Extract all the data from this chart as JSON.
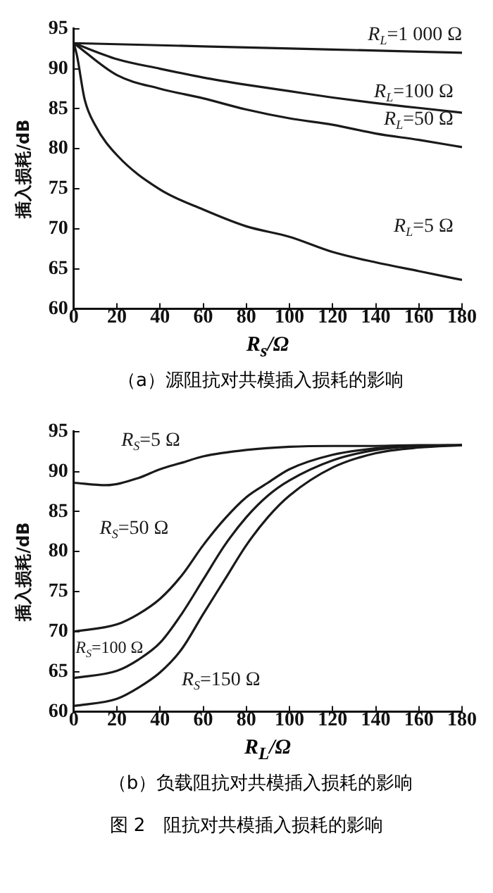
{
  "chart_data": [
    {
      "type": "line",
      "xlabel": "R$_{s}$/Ω",
      "ylabel": "插入损耗/dB",
      "xlim": [
        0,
        180
      ],
      "ylim": [
        60,
        95
      ],
      "xticks": [
        0,
        20,
        40,
        60,
        80,
        100,
        120,
        140,
        160,
        180
      ],
      "yticks": [
        60,
        65,
        70,
        75,
        80,
        85,
        90,
        95
      ],
      "grid": false,
      "legend": false,
      "marker": "none",
      "line_style": "solid",
      "annotations": [
        "（a）源阻抗对共模插入损耗的影响"
      ],
      "series": [
        {
          "name": "R$_{L}$=1 000 Ω",
          "color": "#1a1a1a",
          "x": [
            0,
            60,
            120,
            180
          ],
          "values": [
            93.2,
            92.8,
            92.4,
            92.0
          ]
        },
        {
          "name": "R$_{L}$=100 Ω",
          "color": "#1a1a1a",
          "x": [
            0,
            20,
            40,
            60,
            80,
            100,
            120,
            140,
            160,
            180
          ],
          "values": [
            93.2,
            91.2,
            90.0,
            88.9,
            88.0,
            87.2,
            86.4,
            85.7,
            85.1,
            84.5
          ]
        },
        {
          "name": "R$_{L}$=50 Ω",
          "color": "#1a1a1a",
          "x": [
            0,
            20,
            40,
            60,
            80,
            100,
            120,
            140,
            160,
            180
          ],
          "values": [
            93.2,
            89.2,
            87.5,
            86.3,
            84.9,
            83.8,
            83.0,
            81.9,
            81.1,
            80.2
          ]
        },
        {
          "name": "R$_{L}$=5 Ω",
          "color": "#1a1a1a",
          "x": [
            0,
            1.5,
            5,
            10,
            20,
            40,
            60,
            80,
            100,
            120,
            140,
            160,
            180
          ],
          "values": [
            93.2,
            91.6,
            86.2,
            82.9,
            79.2,
            74.9,
            72.4,
            70.3,
            69.0,
            67.1,
            65.8,
            64.7,
            63.6
          ]
        }
      ]
    },
    {
      "type": "line",
      "xlabel": "R$_{L}$/Ω",
      "ylabel": "插入损耗/dB",
      "xlim": [
        0,
        180
      ],
      "ylim": [
        60,
        95
      ],
      "xticks": [
        0,
        20,
        40,
        60,
        80,
        100,
        120,
        140,
        160,
        180
      ],
      "yticks": [
        60,
        65,
        70,
        75,
        80,
        85,
        90,
        95
      ],
      "grid": false,
      "legend": false,
      "marker": "none",
      "line_style": "solid",
      "annotations": [
        "（b）负载阻抗对共模插入损耗的影响",
        "图 2　阻抗对共模插入损耗的影响"
      ],
      "series": [
        {
          "name": "R$_{S}$=5 Ω",
          "color": "#1a1a1a",
          "x": [
            0,
            15,
            30,
            40,
            50,
            60,
            80,
            100,
            120,
            140,
            160,
            180
          ],
          "values": [
            88.6,
            88.3,
            89.2,
            90.3,
            91.1,
            91.9,
            92.7,
            93.1,
            93.2,
            93.2,
            93.3,
            93.3
          ]
        },
        {
          "name": "R$_{S}$=50 Ω",
          "color": "#1a1a1a",
          "x": [
            0,
            20,
            30,
            40,
            50,
            60,
            70,
            80,
            90,
            100,
            120,
            140,
            160,
            180
          ],
          "values": [
            70.0,
            70.9,
            72.2,
            74.1,
            77.0,
            80.8,
            84.1,
            86.8,
            88.6,
            90.3,
            92.1,
            92.9,
            93.2,
            93.3
          ]
        },
        {
          "name": "R$_{S}$=100 Ω",
          "color": "#1a1a1a",
          "x": [
            0,
            20,
            30,
            40,
            50,
            60,
            70,
            80,
            90,
            100,
            120,
            140,
            160,
            180
          ],
          "values": [
            64.2,
            65.1,
            66.5,
            68.6,
            72.2,
            76.5,
            80.8,
            84.3,
            87.0,
            88.9,
            91.4,
            92.7,
            93.2,
            93.3
          ]
        },
        {
          "name": "R$_{S}$=150 Ω",
          "color": "#1a1a1a",
          "x": [
            0,
            20,
            30,
            40,
            50,
            60,
            70,
            80,
            90,
            100,
            120,
            140,
            160,
            180
          ],
          "values": [
            60.7,
            61.6,
            63.0,
            64.9,
            67.8,
            72.2,
            76.5,
            80.8,
            84.3,
            87.0,
            90.5,
            92.3,
            93.0,
            93.3
          ]
        }
      ]
    }
  ]
}
